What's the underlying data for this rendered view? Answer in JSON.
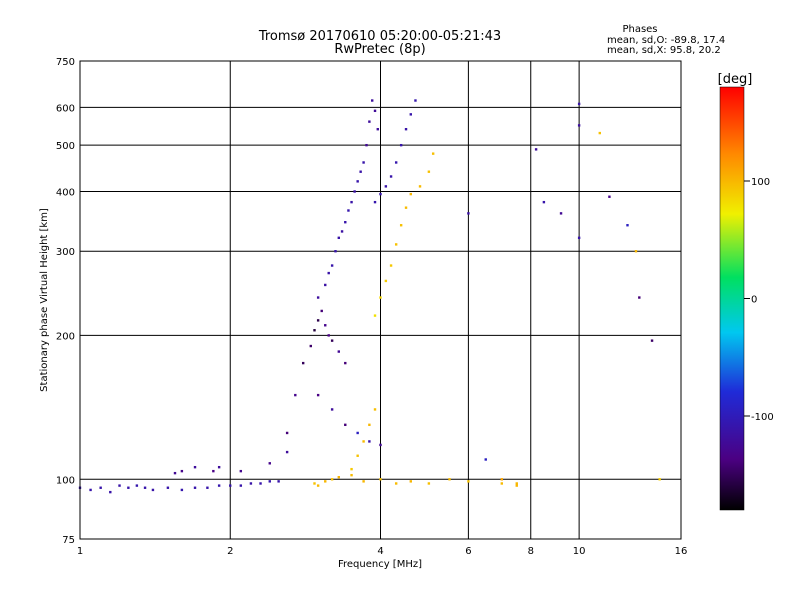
{
  "chart_data": {
    "type": "scatter",
    "title": "Tromsø 20170610 05:20:00-05:21:43",
    "subtitle": "RwPretec (8p)",
    "xlabel": "Frequency [MHz]",
    "ylabel": "Stationary phase Virtual Height [km]",
    "x_scale": "log",
    "y_scale": "log",
    "xlim": [
      1,
      16
    ],
    "ylim": [
      75,
      750
    ],
    "x_ticks": [
      1,
      2,
      4,
      6,
      8,
      10,
      16
    ],
    "y_ticks": [
      75,
      100,
      200,
      300,
      400,
      500,
      600,
      750
    ],
    "grid": true,
    "stats": {
      "heading": "Phases",
      "line_o": "mean, sd,O: -89.8, 17.4",
      "line_x": "mean, sd,X:  95.8, 20.2"
    },
    "colorbar": {
      "label": "[deg]",
      "ticks": [
        {
          "value": 100,
          "label": "100"
        },
        {
          "value": 0,
          "label": "0"
        },
        {
          "value": -100,
          "label": "-100"
        }
      ],
      "min": -180,
      "max": 180
    },
    "series": [
      {
        "x": [
          1.0,
          1.05,
          1.1,
          1.15,
          1.2,
          1.25,
          1.3,
          1.35,
          1.4,
          1.5,
          1.6,
          1.7,
          1.8,
          1.9,
          2.0,
          2.1,
          2.2,
          2.3,
          2.4,
          2.5
        ],
        "y": [
          96,
          95,
          96,
          94,
          97,
          96,
          97,
          96,
          95,
          96,
          95,
          96,
          96,
          97,
          97,
          97,
          98,
          98,
          99,
          99
        ],
        "phase": [
          -110,
          -110,
          -110,
          -112,
          -112,
          -110,
          -108,
          -110,
          -112,
          -110,
          -108,
          -110,
          -110,
          -108,
          -110,
          -110,
          -112,
          -110,
          -108,
          -110
        ]
      },
      {
        "x": [
          1.55,
          1.6,
          1.7,
          1.85,
          1.9,
          2.1,
          2.4,
          2.6
        ],
        "y": [
          103,
          104,
          106,
          104,
          106,
          104,
          108,
          114
        ],
        "phase": [
          -125,
          -130,
          -120,
          -135,
          -120,
          -128,
          -130,
          -120
        ]
      },
      {
        "x": [
          2.6,
          2.7,
          2.8,
          2.9,
          2.95,
          3.0,
          3.05,
          3.1,
          3.15,
          3.2,
          3.3,
          3.4
        ],
        "y": [
          125,
          150,
          175,
          190,
          205,
          215,
          225,
          210,
          200,
          195,
          185,
          175
        ],
        "phase": [
          -140,
          -130,
          -150,
          -145,
          -160,
          -155,
          -140,
          -130,
          -135,
          -150,
          -125,
          -140
        ]
      },
      {
        "x": [
          3.0,
          3.1,
          3.15,
          3.2,
          3.25,
          3.3,
          3.35,
          3.4,
          3.45,
          3.5,
          3.55,
          3.6,
          3.65,
          3.7
        ],
        "y": [
          240,
          255,
          270,
          280,
          300,
          320,
          330,
          345,
          365,
          380,
          400,
          420,
          440,
          460
        ],
        "phase": [
          -118,
          -115,
          -112,
          -110,
          -110,
          -112,
          -115,
          -110,
          -108,
          -112,
          -115,
          -110,
          -112,
          -110
        ]
      },
      {
        "x": [
          3.75,
          3.8,
          3.85,
          3.9,
          3.95
        ],
        "y": [
          500,
          560,
          620,
          590,
          540
        ],
        "phase": [
          -125,
          -120,
          -118,
          -122,
          -120
        ]
      },
      {
        "x": [
          3.9,
          4.0,
          4.1,
          4.2,
          4.3,
          4.4,
          4.5,
          4.6,
          4.7
        ],
        "y": [
          380,
          395,
          410,
          430,
          460,
          500,
          540,
          580,
          620
        ],
        "phase": [
          -108,
          -110,
          -112,
          -110,
          -108,
          -110,
          -112,
          -110,
          -108
        ]
      },
      {
        "x": [
          3.0,
          3.2,
          3.4,
          3.6,
          3.8,
          4.0
        ],
        "y": [
          150,
          140,
          130,
          125,
          120,
          118
        ],
        "phase": [
          -135,
          -120,
          -140,
          -95,
          -110,
          -125
        ]
      },
      {
        "x": [
          2.95,
          3.0,
          3.1,
          3.2,
          3.3,
          3.5,
          3.7,
          4.0,
          4.3,
          4.6,
          5.0,
          5.5,
          6.0,
          7.0,
          7.5
        ],
        "y": [
          98,
          97,
          99,
          100,
          101,
          102,
          99,
          100,
          98,
          99,
          98,
          100,
          99,
          98,
          97
        ],
        "phase": [
          95,
          98,
          100,
          96,
          102,
          98,
          100,
          95,
          98,
          100,
          96,
          98,
          94,
          98,
          100
        ]
      },
      {
        "x": [
          3.9,
          4.0,
          4.1,
          4.2,
          4.3,
          4.4,
          4.5,
          4.6,
          4.8,
          5.0,
          5.1
        ],
        "y": [
          220,
          240,
          260,
          280,
          310,
          340,
          370,
          395,
          410,
          440,
          480
        ],
        "phase": [
          80,
          85,
          90,
          92,
          95,
          95,
          98,
          100,
          98,
          95,
          96
        ]
      },
      {
        "x": [
          3.5,
          3.6,
          3.7,
          3.8,
          3.9
        ],
        "y": [
          105,
          112,
          120,
          130,
          140
        ],
        "phase": [
          92,
          95,
          98,
          100,
          96
        ]
      },
      {
        "x": [
          6.0,
          6.5,
          7.0,
          7.5,
          8.2,
          8.5,
          9.2,
          10.0,
          10.0,
          10.0,
          11.0,
          11.5,
          12.5,
          13.0,
          13.2,
          14.0,
          14.5
        ],
        "y": [
          360,
          110,
          100,
          98,
          490,
          380,
          360,
          610,
          550,
          320,
          530,
          390,
          340,
          300,
          240,
          195,
          100
        ],
        "phase": [
          -115,
          -95,
          110,
          100,
          -120,
          -110,
          -125,
          -112,
          -118,
          -110,
          95,
          -130,
          -95,
          100,
          -140,
          -145,
          90
        ]
      }
    ]
  }
}
